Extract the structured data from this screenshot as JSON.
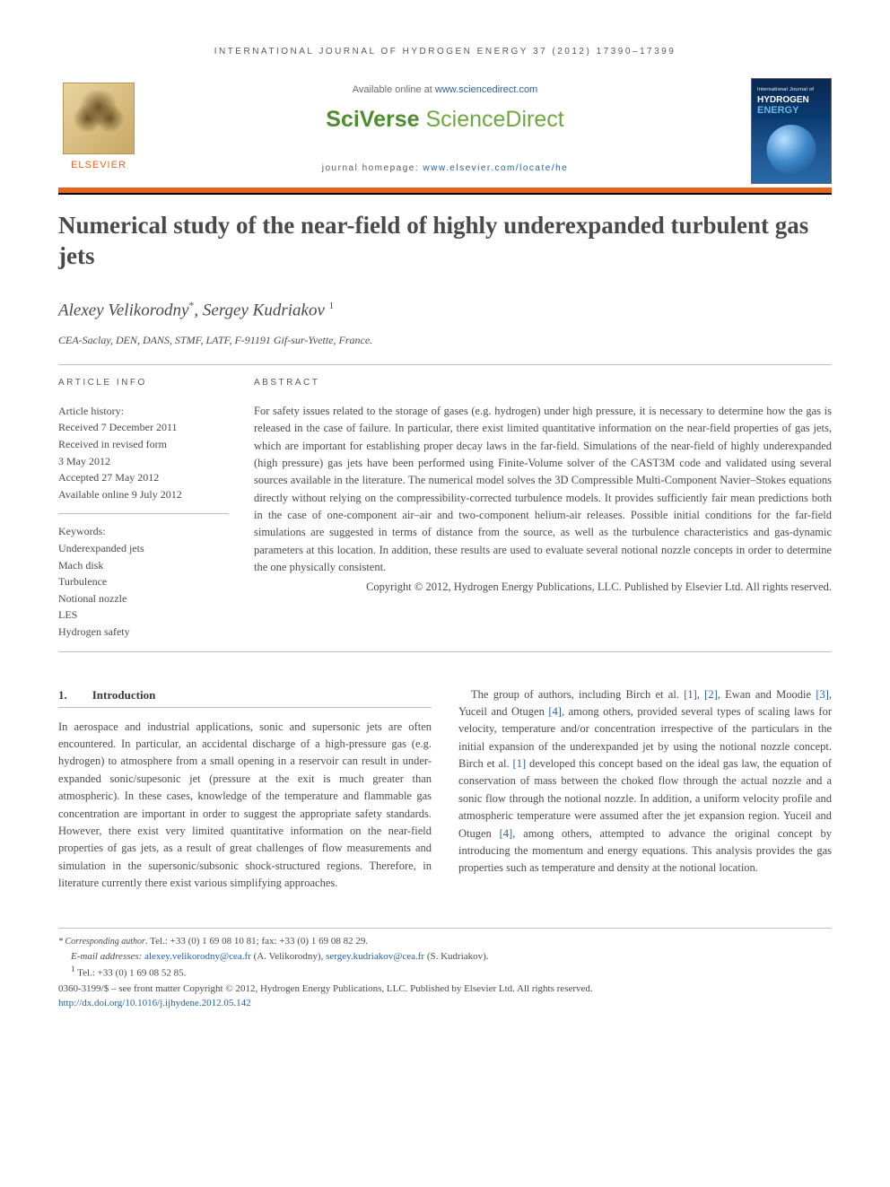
{
  "running_header": "INTERNATIONAL JOURNAL OF HYDROGEN ENERGY 37 (2012) 17390–17399",
  "masthead": {
    "publisher_name": "ELSEVIER",
    "available_prefix": "Available online at ",
    "available_url": "www.sciencedirect.com",
    "brand_a": "SciVerse ",
    "brand_b": "ScienceDirect",
    "homepage_prefix": "journal homepage: ",
    "homepage_url": "www.elsevier.com/locate/he",
    "cover_line1": "International Journal of",
    "cover_line2": "HYDROGEN",
    "cover_line3": "ENERGY"
  },
  "title": "Numerical study of the near-field of highly underexpanded turbulent gas jets",
  "authors_html": "Alexey Velikorodny",
  "author1": "Alexey Velikorodny",
  "author1_mark": "*",
  "author2": "Sergey Kudriakov",
  "author2_mark": "1",
  "affiliation": "CEA-Saclay, DEN, DANS, STMF, LATF, F-91191 Gif-sur-Yvette, France.",
  "article_info": {
    "heading": "ARTICLE INFO",
    "history_label": "Article history:",
    "received": "Received 7 December 2011",
    "revised1": "Received in revised form",
    "revised2": "3 May 2012",
    "accepted": "Accepted 27 May 2012",
    "online": "Available online 9 July 2012",
    "keywords_label": "Keywords:",
    "keywords": [
      "Underexpanded jets",
      "Mach disk",
      "Turbulence",
      "Notional nozzle",
      "LES",
      "Hydrogen safety"
    ]
  },
  "abstract": {
    "heading": "ABSTRACT",
    "text": "For safety issues related to the storage of gases (e.g. hydrogen) under high pressure, it is necessary to determine how the gas is released in the case of failure. In particular, there exist limited quantitative information on the near-field properties of gas jets, which are important for establishing proper decay laws in the far-field. Simulations of the near-field of highly underexpanded (high pressure) gas jets have been performed using Finite-Volume solver of the CAST3M code and validated using several sources available in the literature. The numerical model solves the 3D Compressible Multi-Component Navier–Stokes equations directly without relying on the compressibility-corrected turbulence models. It provides sufficiently fair mean predictions both in the case of one-component air–air and two-component helium-air releases. Possible initial conditions for the far-field simulations are suggested in terms of distance from the source, as well as the turbulence characteristics and gas-dynamic parameters at this location. In addition, these results are used to evaluate several notional nozzle concepts in order to determine the one physically consistent.",
    "copyright": "Copyright © 2012, Hydrogen Energy Publications, LLC. Published by Elsevier Ltd. All rights reserved."
  },
  "section1": {
    "num": "1.",
    "title": "Introduction",
    "col1": "In aerospace and industrial applications, sonic and supersonic jets are often encountered. In particular, an accidental discharge of a high-pressure gas (e.g. hydrogen) to atmosphere from a small opening in a reservoir can result in under-expanded sonic/supesonic jet (pressure at the exit is much greater than atmospheric). In these cases, knowledge of the temperature and flammable gas concentration are important in order to suggest the appropriate safety standards. However, there exist very limited quantitative information on the near-field properties of gas jets, as a result of great challenges of flow measurements and simulation in the supersonic/subsonic shock-structured regions. Therefore, in literature currently there exist various simplifying approaches.",
    "col2_a": "The group of authors, including Birch et al. ",
    "ref1": "[1]",
    "col2_b": ", ",
    "ref2": "[2]",
    "col2_c": ", Ewan and Moodie ",
    "ref3": "[3]",
    "col2_d": ", Yuceil and Otugen ",
    "ref4": "[4]",
    "col2_e": ", among others, provided several types of scaling laws for velocity, temperature and/or concentration irrespective of the particulars in the initial expansion of the underexpanded jet by using the notional nozzle concept. Birch et al. ",
    "ref1b": "[1]",
    "col2_f": " developed this concept based on the ideal gas law, the equation of conservation of mass between the choked flow through the actual nozzle and a sonic flow through the notional nozzle. In addition, a uniform velocity profile and atmospheric temperature were assumed after the jet expansion region. Yuceil and Otugen ",
    "ref4b": "[4]",
    "col2_g": ", among others, attempted to advance the original concept by introducing the momentum and energy equations. This analysis provides the gas properties such as temperature and density at the notional location."
  },
  "footnotes": {
    "corr_label": "* Corresponding author",
    "corr_tel": ". Tel.: +33 (0) 1 69 08 10 81; fax: +33 (0) 1 69 08 82 29.",
    "email_label": "E-mail addresses: ",
    "email1": "alexey.velikorodny@cea.fr",
    "email1_who": " (A. Velikorodny), ",
    "email2": "sergey.kudriakov@cea.fr",
    "email2_who": " (S. Kudriakov).",
    "note1_mark": "1",
    "note1": " Tel.: +33 (0) 1 69 08 52 85.",
    "issn": "0360-3199/$ – see front matter Copyright © 2012, Hydrogen Energy Publications, LLC. Published by Elsevier Ltd. All rights reserved.",
    "doi": "http://dx.doi.org/10.1016/j.ijhydene.2012.05.142"
  },
  "colors": {
    "orange": "#e8641b",
    "link": "#2861a3",
    "text": "#4a4a4a",
    "green1": "#4d8c2f",
    "green2": "#6fa83f"
  }
}
